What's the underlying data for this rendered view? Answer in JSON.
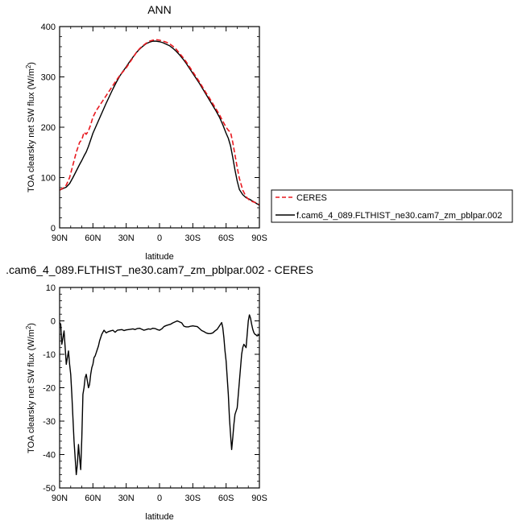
{
  "chart_data": [
    {
      "type": "line",
      "title": "ANN",
      "xlabel": "latitude",
      "ylabel": "TOA clearsky net SW flux (W/m",
      "ylabel_sup": "2",
      "ylabel_end": ")",
      "xlim": [
        90,
        -90
      ],
      "ylim": [
        0,
        400
      ],
      "x_ticks": [
        90,
        60,
        30,
        0,
        -30,
        -60,
        -90
      ],
      "x_tick_labels": [
        "90N",
        "60N",
        "30N",
        "0",
        "30S",
        "60S",
        "90S"
      ],
      "y_ticks": [
        0,
        100,
        200,
        300,
        400
      ],
      "y_tick_labels": [
        "0",
        "100",
        "200",
        "300",
        "400"
      ],
      "legend_position": "right",
      "series": [
        {
          "name": "CERES",
          "color": "#e8191f",
          "dash": "dashed",
          "x": [
            90,
            87,
            84,
            81,
            78,
            75,
            72,
            70,
            68,
            66,
            64,
            62,
            60,
            57,
            54,
            51,
            48,
            45,
            42,
            39,
            36,
            33,
            30,
            27,
            24,
            21,
            18,
            15,
            12,
            9,
            6,
            3,
            0,
            -3,
            -6,
            -9,
            -12,
            -15,
            -18,
            -21,
            -24,
            -27,
            -30,
            -33,
            -36,
            -39,
            -42,
            -45,
            -48,
            -51,
            -54,
            -57,
            -60,
            -62,
            -64,
            -66,
            -68,
            -70,
            -72,
            -75,
            -78,
            -81,
            -84,
            -87,
            -90
          ],
          "y": [
            75,
            79,
            85,
            100,
            125,
            150,
            170,
            175,
            190,
            186,
            193,
            205,
            220,
            233,
            243,
            253,
            263,
            273,
            283,
            293,
            302,
            310,
            318,
            328,
            338,
            348,
            356,
            362,
            367,
            371,
            373,
            374,
            373,
            371,
            369,
            366,
            361,
            355,
            347,
            339,
            330,
            320,
            310,
            300,
            290,
            279,
            268,
            258,
            247,
            236,
            225,
            212,
            200,
            194,
            190,
            170,
            145,
            120,
            98,
            75,
            62,
            55,
            52,
            50,
            46
          ]
        },
        {
          "name": "f.cam6_4_089.FLTHIST_ne30.cam7_zm_pblpar.002",
          "color": "#000000",
          "dash": "solid",
          "x": [
            90,
            87,
            84,
            81,
            78,
            75,
            72,
            70,
            68,
            66,
            64,
            62,
            60,
            57,
            54,
            51,
            48,
            45,
            42,
            39,
            36,
            33,
            30,
            27,
            24,
            21,
            18,
            15,
            12,
            9,
            6,
            3,
            0,
            -3,
            -6,
            -9,
            -12,
            -15,
            -18,
            -21,
            -24,
            -27,
            -30,
            -33,
            -36,
            -39,
            -42,
            -45,
            -48,
            -51,
            -54,
            -57,
            -60,
            -62,
            -64,
            -66,
            -68,
            -70,
            -72,
            -75,
            -78,
            -81,
            -84,
            -87,
            -90
          ],
          "y": [
            75,
            78,
            81,
            88,
            100,
            113,
            126,
            134,
            143,
            151,
            162,
            175,
            188,
            203,
            218,
            233,
            248,
            262,
            276,
            289,
            301,
            311,
            320,
            330,
            339,
            348,
            355,
            361,
            366,
            369,
            371,
            371,
            370,
            368,
            365,
            362,
            357,
            351,
            344,
            336,
            327,
            317,
            307,
            297,
            287,
            276,
            265,
            254,
            243,
            232,
            220,
            205,
            188,
            178,
            163,
            140,
            115,
            93,
            76,
            66,
            60,
            57,
            53,
            49,
            45
          ]
        }
      ]
    },
    {
      "type": "line",
      "title": ".cam6_4_089.FLTHIST_ne30.cam7_zm_pblpar.002 - CERES",
      "xlabel": "latitude",
      "ylabel": "TOA clearsky net SW flux (W/m",
      "ylabel_sup": "2",
      "ylabel_end": ")",
      "xlim": [
        90,
        -90
      ],
      "ylim": [
        -50,
        10
      ],
      "x_ticks": [
        90,
        60,
        30,
        0,
        -30,
        -60,
        -90
      ],
      "x_tick_labels": [
        "90N",
        "60N",
        "30N",
        "0",
        "30S",
        "60S",
        "90S"
      ],
      "y_ticks": [
        -50,
        -40,
        -30,
        -20,
        -10,
        0,
        10
      ],
      "y_tick_labels": [
        "-50",
        "-40",
        "-30",
        "-20",
        "-10",
        "0",
        "10"
      ],
      "series": [
        {
          "name": "",
          "color": "#000000",
          "dash": "solid",
          "x": [
            90,
            89,
            88,
            87,
            86,
            85,
            84,
            83,
            82,
            81,
            80,
            79,
            78,
            77,
            76,
            75,
            74,
            73,
            72,
            71,
            70,
            69,
            68,
            67,
            66,
            65,
            64,
            63,
            62,
            61,
            60,
            59,
            58,
            57,
            56,
            55,
            54,
            52,
            50,
            48,
            46,
            44,
            42,
            40,
            38,
            36,
            34,
            32,
            30,
            28,
            26,
            24,
            22,
            20,
            18,
            16,
            14,
            12,
            10,
            8,
            6,
            4,
            2,
            0,
            -2,
            -4,
            -6,
            -8,
            -10,
            -12,
            -14,
            -16,
            -18,
            -20,
            -22,
            -24,
            -26,
            -28,
            -30,
            -32,
            -34,
            -36,
            -38,
            -40,
            -42,
            -44,
            -46,
            -48,
            -50,
            -52,
            -54,
            -56,
            -57,
            -58,
            -59,
            -60,
            -61,
            -62,
            -63,
            -64,
            -65,
            -66,
            -67,
            -68,
            -69,
            -70,
            -71,
            -72,
            -73,
            -74,
            -75,
            -76,
            -77,
            -78,
            -79,
            -80,
            -81,
            -82,
            -83,
            -84,
            -85,
            -86,
            -87,
            -88,
            -89,
            -90
          ],
          "y": [
            -0.5,
            -1,
            -7,
            -5,
            -3,
            -8,
            -13,
            -11,
            -9,
            -13,
            -16,
            -22,
            -29,
            -36,
            -41,
            -46,
            -43,
            -37,
            -41,
            -44.5,
            -35,
            -22,
            -20,
            -17,
            -16,
            -18,
            -20,
            -19,
            -16,
            -14,
            -13,
            -11,
            -10.5,
            -9.5,
            -8.5,
            -7.5,
            -6,
            -4,
            -2.8,
            -3.6,
            -3.2,
            -3.0,
            -2.8,
            -3.4,
            -2.8,
            -2.7,
            -2.6,
            -2.9,
            -2.7,
            -2.6,
            -2.5,
            -2.4,
            -2.6,
            -2.3,
            -2.2,
            -2.5,
            -2.8,
            -2.6,
            -2.4,
            -2.5,
            -2.2,
            -2.3,
            -2.6,
            -2.8,
            -2.4,
            -1.7,
            -1.4,
            -1.2,
            -1.0,
            -0.6,
            -0.3,
            0,
            -0.3,
            -0.6,
            -1.6,
            -1.8,
            -1.8,
            -1.6,
            -1.5,
            -1.6,
            -1.7,
            -2.3,
            -2.9,
            -3.2,
            -3.6,
            -3.8,
            -3.8,
            -3.6,
            -3.0,
            -2.5,
            -1.5,
            -0.5,
            -2,
            -5,
            -9,
            -12,
            -17,
            -22,
            -29,
            -34,
            -38.5,
            -35,
            -31,
            -28,
            -27,
            -26,
            -22,
            -18,
            -14,
            -10,
            -8,
            -7,
            -7.5,
            -8,
            -4,
            0,
            1.8,
            0.8,
            -1,
            -2.5,
            -3.5,
            -4,
            -4.2,
            -4.5,
            -4.3,
            -4.2
          ]
        }
      ]
    }
  ]
}
